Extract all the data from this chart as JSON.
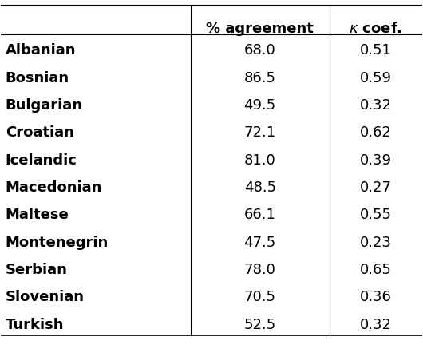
{
  "languages": [
    "Albanian",
    "Bosnian",
    "Bulgarian",
    "Croatian",
    "Icelandic",
    "Macedonian",
    "Maltese",
    "Montenegrin",
    "Serbian",
    "Slovenian",
    "Turkish"
  ],
  "pct_agreement": [
    68.0,
    86.5,
    49.5,
    72.1,
    81.0,
    48.5,
    66.1,
    47.5,
    78.0,
    70.5,
    52.5
  ],
  "kappa": [
    0.51,
    0.59,
    0.32,
    0.62,
    0.39,
    0.27,
    0.55,
    0.23,
    0.65,
    0.36,
    0.32
  ],
  "col_headers": [
    "% agreement",
    "κ coef."
  ],
  "background_color": "#ffffff",
  "text_color": "#000000",
  "header_fontsize": 13,
  "body_fontsize": 13,
  "lang_fontsize": 13
}
